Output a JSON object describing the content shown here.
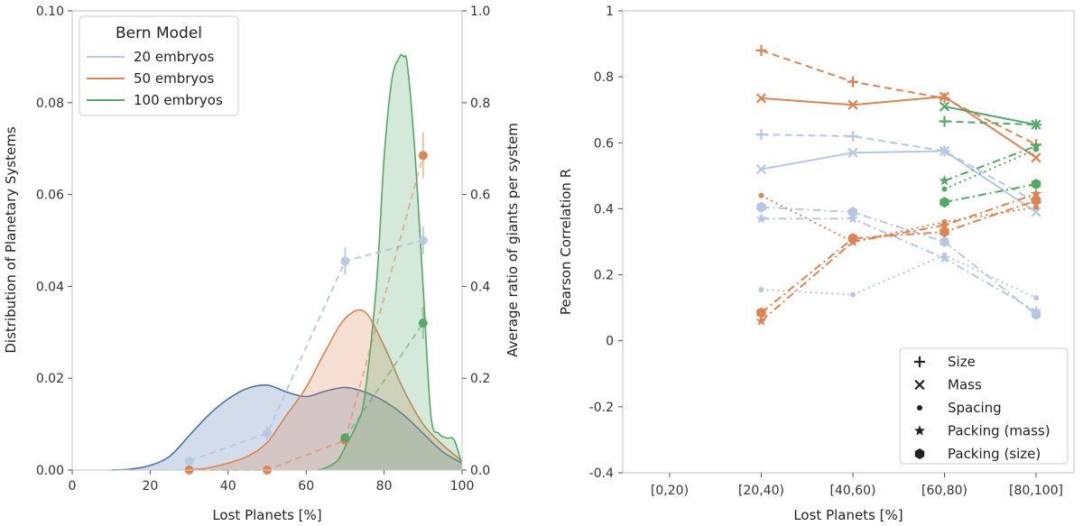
{
  "colors": {
    "c20": "#4c72b0",
    "c20_light": "#b7c7e3",
    "c50": "#dd8452",
    "c100": "#55a868",
    "axis": "#cccccc"
  },
  "chart_data": [
    {
      "type": "area",
      "title": "",
      "xlabel": "Lost Planets [%]",
      "ylabel": "Distribution of Planetary Systems",
      "ylabel_right": "Average ratio of giants per system",
      "xlim": [
        0,
        100
      ],
      "ylim": [
        0,
        0.1
      ],
      "ylim_right": [
        0,
        1.0
      ],
      "xticks": [
        "0",
        "20",
        "40",
        "60",
        "80",
        "100"
      ],
      "yticks": [
        "0.00",
        "0.02",
        "0.04",
        "0.06",
        "0.08",
        "0.10"
      ],
      "yticks_right": [
        "0.0",
        "0.2",
        "0.4",
        "0.6",
        "0.8",
        "1.0"
      ],
      "legend_title": "Bern Model",
      "legend_position": "top-left",
      "series": [
        {
          "name": "20 embryos",
          "color_key": "c20",
          "kde_x": [
            10,
            15,
            20,
            25,
            30,
            35,
            40,
            45,
            50,
            55,
            60,
            65,
            70,
            75,
            80,
            85,
            90,
            95,
            100
          ],
          "kde_y": [
            0.0,
            0.0002,
            0.001,
            0.003,
            0.0075,
            0.012,
            0.0155,
            0.0178,
            0.0185,
            0.017,
            0.016,
            0.0172,
            0.018,
            0.017,
            0.015,
            0.012,
            0.008,
            0.004,
            0.0015
          ],
          "ratio_x": [
            30,
            50,
            70,
            90
          ],
          "ratio_y": [
            0.02,
            0.08,
            0.455,
            0.5
          ],
          "ratio_err": [
            0.01,
            0.015,
            0.03,
            0.03
          ]
        },
        {
          "name": "50 embryos",
          "color_key": "c50",
          "kde_x": [
            30,
            35,
            40,
            45,
            50,
            55,
            60,
            65,
            70,
            75,
            80,
            85,
            90,
            95,
            100
          ],
          "kde_y": [
            0.0,
            0.0005,
            0.0015,
            0.003,
            0.006,
            0.012,
            0.018,
            0.026,
            0.033,
            0.0345,
            0.027,
            0.0175,
            0.01,
            0.0055,
            0.002
          ],
          "ratio_x": [
            30,
            50,
            70,
            90
          ],
          "ratio_y": [
            0.0,
            0.0,
            0.065,
            0.685
          ],
          "ratio_err": [
            0.005,
            0.005,
            0.01,
            0.05
          ]
        },
        {
          "name": "100 embryos",
          "color_key": "c100",
          "kde_x": [
            63,
            65,
            68,
            70,
            73,
            75,
            78,
            80,
            82,
            84,
            85,
            86,
            88,
            90,
            92,
            94,
            96,
            98,
            100
          ],
          "kde_y": [
            0.0,
            0.0005,
            0.002,
            0.005,
            0.01,
            0.016,
            0.04,
            0.068,
            0.085,
            0.09,
            0.09,
            0.088,
            0.068,
            0.04,
            0.012,
            0.008,
            0.007,
            0.0065,
            0.001
          ],
          "ratio_x": [
            70,
            90
          ],
          "ratio_y": [
            0.07,
            0.32
          ],
          "ratio_err": [
            0.01,
            0.035
          ]
        }
      ]
    },
    {
      "type": "line",
      "xlabel": "Lost Planets [%]",
      "ylabel": "Pearson Correlation R",
      "categories": [
        "[0,20)",
        "[20,40)",
        "[40,60)",
        "[60,80)",
        "[80,100]"
      ],
      "ylim": [
        -0.4,
        1.0
      ],
      "yticks": [
        "-0.4",
        "-0.2",
        "0",
        "0.2",
        "0.4",
        "0.6",
        "0.8",
        "1"
      ],
      "legend_position": "bottom-right",
      "legend": [
        {
          "label": "Size",
          "marker": "plus"
        },
        {
          "label": "Mass",
          "marker": "x"
        },
        {
          "label": "Spacing",
          "marker": "dot"
        },
        {
          "label": "Packing (mass)",
          "marker": "star"
        },
        {
          "label": "Packing (size)",
          "marker": "hexagon"
        }
      ],
      "series": [
        {
          "name": "20 embryos Size",
          "color_key": "c20_light",
          "marker": "plus",
          "dash": "dashed",
          "x": [
            1,
            2,
            3,
            4
          ],
          "y": [
            0.625,
            0.62,
            0.575,
            0.42
          ]
        },
        {
          "name": "20 embryos Mass",
          "color_key": "c20_light",
          "marker": "x",
          "dash": "solid",
          "x": [
            1,
            2,
            3,
            4
          ],
          "y": [
            0.52,
            0.57,
            0.575,
            0.39
          ]
        },
        {
          "name": "20 embryos Spacing",
          "color_key": "c20_light",
          "marker": "dot",
          "dash": "dotted",
          "x": [
            1,
            2,
            3,
            4
          ],
          "y": [
            0.155,
            0.14,
            0.26,
            0.13
          ]
        },
        {
          "name": "20 embryos Packing (mass)",
          "color_key": "c20_light",
          "marker": "star",
          "dash": "dashdot",
          "x": [
            1,
            2,
            3,
            4
          ],
          "y": [
            0.37,
            0.37,
            0.25,
            0.09
          ]
        },
        {
          "name": "20 embryos Packing (size)",
          "color_key": "c20_light",
          "marker": "hexagon",
          "dash": "dashdot",
          "x": [
            1,
            2,
            3,
            4
          ],
          "y": [
            0.405,
            0.39,
            0.3,
            0.08
          ]
        },
        {
          "name": "50 embryos Size",
          "color_key": "c50",
          "marker": "plus",
          "dash": "dashed",
          "x": [
            1,
            2,
            3,
            4
          ],
          "y": [
            0.88,
            0.785,
            0.735,
            0.595
          ]
        },
        {
          "name": "50 embryos Mass",
          "color_key": "c50",
          "marker": "x",
          "dash": "solid",
          "x": [
            1,
            2,
            3,
            4
          ],
          "y": [
            0.735,
            0.715,
            0.74,
            0.555
          ]
        },
        {
          "name": "50 embryos Spacing",
          "color_key": "c50",
          "marker": "dot",
          "dash": "dotted",
          "x": [
            1,
            2,
            3,
            4
          ],
          "y": [
            0.44,
            0.3,
            0.36,
            0.405
          ]
        },
        {
          "name": "50 embryos Packing (mass)",
          "color_key": "c50",
          "marker": "star",
          "dash": "dashdot",
          "x": [
            1,
            2,
            3,
            4
          ],
          "y": [
            0.06,
            0.3,
            0.35,
            0.445
          ]
        },
        {
          "name": "50 embryos Packing (size)",
          "color_key": "c50",
          "marker": "hexagon",
          "dash": "dashdot",
          "x": [
            1,
            2,
            3,
            4
          ],
          "y": [
            0.085,
            0.31,
            0.33,
            0.425
          ]
        },
        {
          "name": "100 embryos Size",
          "color_key": "c100",
          "marker": "plus",
          "dash": "dashed",
          "x": [
            3,
            4
          ],
          "y": [
            0.665,
            0.655
          ]
        },
        {
          "name": "100 embryos Mass",
          "color_key": "c100",
          "marker": "x",
          "dash": "solid",
          "x": [
            3,
            4
          ],
          "y": [
            0.71,
            0.655
          ]
        },
        {
          "name": "100 embryos Spacing",
          "color_key": "c100",
          "marker": "dot",
          "dash": "dotted",
          "x": [
            3,
            4
          ],
          "y": [
            0.46,
            0.58
          ]
        },
        {
          "name": "100 embryos Packing (mass)",
          "color_key": "c100",
          "marker": "star",
          "dash": "dashdot",
          "x": [
            3,
            4
          ],
          "y": [
            0.485,
            0.59
          ]
        },
        {
          "name": "100 embryos Packing (size)",
          "color_key": "c100",
          "marker": "hexagon",
          "dash": "dashdot",
          "x": [
            3,
            4
          ],
          "y": [
            0.42,
            0.475
          ]
        }
      ]
    }
  ]
}
